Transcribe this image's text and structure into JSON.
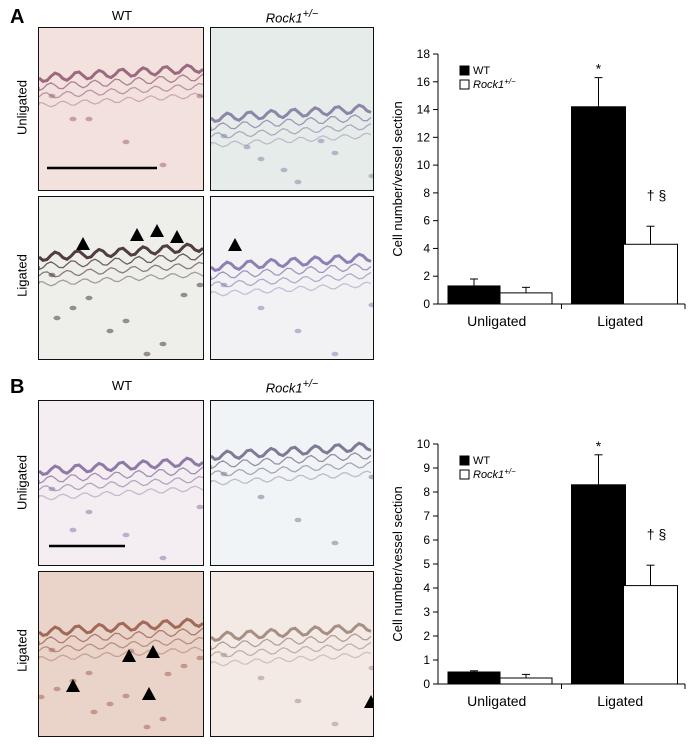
{
  "panels": [
    {
      "letter": "A",
      "col_labels": {
        "wt": "WT",
        "rock_base": "Rock1",
        "rock_sup": "+/−"
      },
      "row_labels": {
        "unligated": "Unligated",
        "ligated": "Ligated"
      },
      "images": {
        "wt_unligated": {
          "tint": "#f3e1de",
          "wall": "#9c6a80"
        },
        "rock_unligated": {
          "tint": "#e6ecea",
          "wall": "#8c86a8"
        },
        "wt_ligated": {
          "tint": "#eeeeea",
          "wall": "#4f3d3f"
        },
        "rock_ligated": {
          "tint": "#f2f2f4",
          "wall": "#8f80b4"
        }
      }
    },
    {
      "letter": "B",
      "col_labels": {
        "wt": "WT",
        "rock_base": "Rock1",
        "rock_sup": "+/−"
      },
      "row_labels": {
        "unligated": "Unligated",
        "ligated": "Ligated"
      },
      "images": {
        "wt_unligated": {
          "tint": "#f4eef2",
          "wall": "#8f7aa6"
        },
        "rock_unligated": {
          "tint": "#f1f4f6",
          "wall": "#7f7a96"
        },
        "wt_ligated": {
          "tint": "#ead3c8",
          "wall": "#a06a58"
        },
        "rock_ligated": {
          "tint": "#f3eae6",
          "wall": "#a88f86"
        }
      }
    }
  ],
  "chart_data": [
    {
      "type": "bar",
      "categories": [
        "Unligated",
        "Ligated"
      ],
      "series": [
        {
          "name": "WT",
          "values": [
            1.3,
            14.2
          ],
          "errors": [
            0.5,
            2.1
          ],
          "color": "#000000"
        },
        {
          "name": "Rock1+/−",
          "values": [
            0.8,
            4.3
          ],
          "errors": [
            0.4,
            1.3
          ],
          "color": "#ffffff"
        }
      ],
      "ylabel": "Cell number/vessel section",
      "ylim": [
        0,
        18
      ],
      "yticks": [
        0,
        2,
        4,
        6,
        8,
        10,
        12,
        14,
        16,
        18
      ],
      "legend_position": "top-left",
      "annotations": {
        "wt_ligated": "*",
        "rock_ligated": "† §"
      },
      "grid": false
    },
    {
      "type": "bar",
      "categories": [
        "Unligated",
        "Ligated"
      ],
      "series": [
        {
          "name": "WT",
          "values": [
            0.5,
            8.3
          ],
          "errors": [
            0.05,
            1.25
          ],
          "color": "#000000"
        },
        {
          "name": "Rock1+/−",
          "values": [
            0.25,
            4.1
          ],
          "errors": [
            0.15,
            0.85
          ],
          "color": "#ffffff"
        }
      ],
      "ylabel": "Cell number/vessel section",
      "ylim": [
        0,
        10
      ],
      "yticks": [
        0,
        1,
        2,
        3,
        4,
        5,
        6,
        7,
        8,
        9,
        10
      ],
      "legend_position": "top-left",
      "annotations": {
        "wt_ligated": "*",
        "rock_ligated": "† §"
      },
      "grid": false
    }
  ]
}
